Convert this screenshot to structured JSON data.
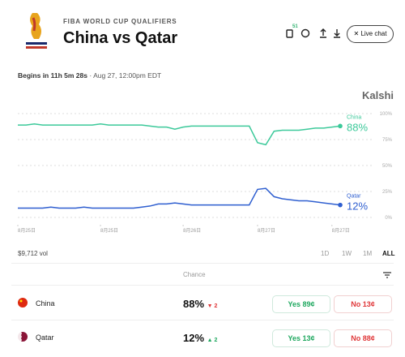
{
  "header": {
    "eyebrow": "FIBA WORLD CUP QUALIFIERS",
    "title": "China vs Qatar",
    "badge": "51",
    "live_chat": "Live chat"
  },
  "status": {
    "countdown": "Begins in 11h 5m 28s",
    "date": "· Aug 27, 12:00pm EDT"
  },
  "brand": "Kalshi",
  "chart_data": {
    "type": "line",
    "series": [
      {
        "name": "China",
        "color": "#3cc99a",
        "values": [
          89,
          89,
          90,
          89,
          89,
          89,
          89,
          89,
          89,
          89,
          90,
          89,
          89,
          89,
          89,
          89,
          88,
          87,
          87,
          85,
          87,
          88,
          88,
          88,
          88,
          88,
          88,
          88,
          88,
          72,
          70,
          83,
          84,
          84,
          84,
          85,
          86,
          86,
          87,
          88
        ],
        "value_labels": [
          null,
          null,
          null,
          null,
          null,
          null,
          null,
          null,
          null,
          null,
          null,
          null,
          null,
          null,
          null,
          null,
          null,
          null,
          null,
          null,
          null,
          null,
          null,
          null,
          null,
          null,
          null,
          null,
          null,
          null,
          null,
          null,
          null,
          null,
          null,
          null,
          null,
          null,
          null,
          "88%"
        ]
      },
      {
        "name": "Qatar",
        "color": "#2f5fd0",
        "values": [
          9,
          9,
          9,
          9,
          10,
          9,
          9,
          9,
          10,
          9,
          9,
          9,
          9,
          9,
          9,
          10,
          11,
          13,
          13,
          14,
          13,
          12,
          12,
          12,
          12,
          12,
          12,
          12,
          12,
          27,
          28,
          20,
          18,
          17,
          16,
          16,
          15,
          14,
          13,
          12
        ],
        "value_labels": [
          null,
          null,
          null,
          null,
          null,
          null,
          null,
          null,
          null,
          null,
          null,
          null,
          null,
          null,
          null,
          null,
          null,
          null,
          null,
          null,
          null,
          null,
          null,
          null,
          null,
          null,
          null,
          null,
          null,
          null,
          null,
          null,
          null,
          null,
          null,
          null,
          null,
          null,
          null,
          "12%"
        ]
      }
    ],
    "xlim": [
      0,
      39
    ],
    "xticks": [
      {
        "value": 0,
        "label": "8月25日"
      },
      {
        "value": 10,
        "label": "8月25日"
      },
      {
        "value": 20,
        "label": "8月26日"
      },
      {
        "value": 29,
        "label": "8月27日"
      },
      {
        "value": 38,
        "label": "8月27日"
      }
    ],
    "ylim": [
      0,
      100
    ],
    "yticks": [
      {
        "value": 0,
        "label": "0%"
      },
      {
        "value": 25,
        "label": "25%"
      },
      {
        "value": 50,
        "label": "50%"
      },
      {
        "value": 75,
        "label": "75%"
      },
      {
        "value": 100,
        "label": "100%"
      }
    ],
    "grid": true
  },
  "volume": "$9,712 vol",
  "ranges": [
    "1D",
    "1W",
    "1M",
    "ALL"
  ],
  "table": {
    "header": "Chance",
    "rows": [
      {
        "name": "China",
        "chance": "88%",
        "change": "2",
        "yes": "Yes 89¢",
        "no": "No 13¢"
      },
      {
        "name": "Qatar",
        "chance": "12%",
        "change": "2",
        "yes": "Yes 13¢",
        "no": "No 88¢"
      }
    ]
  }
}
